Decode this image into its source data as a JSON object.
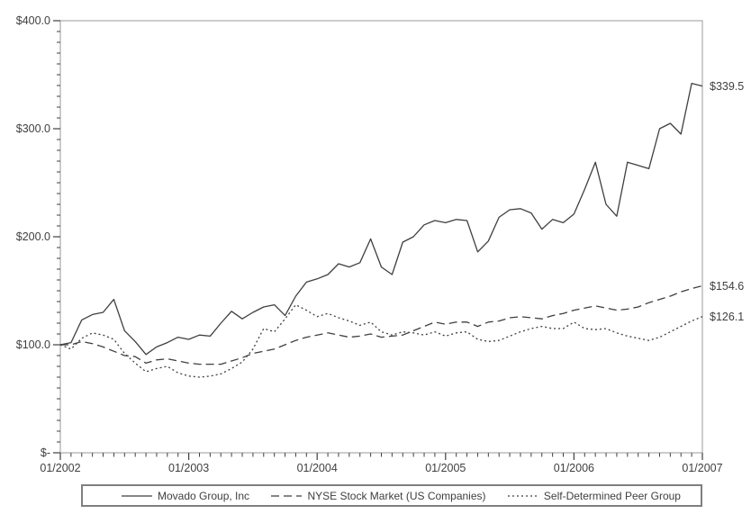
{
  "chart_data": {
    "type": "line",
    "title": "",
    "xlabel": "",
    "ylabel": "",
    "x_unit": "month",
    "x_range": [
      "01/2002",
      "01/2007"
    ],
    "x_tick_labels": [
      "01/2002",
      "01/2003",
      "01/2004",
      "01/2005",
      "01/2006",
      "01/2007"
    ],
    "x_minor_tick_every_months": 1,
    "x_major_tick_every_months": 12,
    "ylim": [
      0,
      400
    ],
    "y_minor_step": 10,
    "y_ticks": [
      {
        "value": 400,
        "label": "$400.0"
      },
      {
        "value": 300,
        "label": "$300.0"
      },
      {
        "value": 200,
        "label": "$200.0"
      },
      {
        "value": 100,
        "label": "$100.0"
      },
      {
        "value": 0,
        "label": "$-"
      }
    ],
    "grid": "off",
    "legend_position": "bottom",
    "colors": {
      "series_line": "#3f3f3f",
      "axis_line": "#9a9a9a",
      "text": "#3f3f3f",
      "legend_border": "#7f7f7f",
      "background": "#ffffff"
    },
    "series": [
      {
        "name": "Movado Group, Inc",
        "line_style": "solid",
        "end_label": "$339.5",
        "values": [
          100,
          102,
          123,
          128,
          130,
          142,
          113,
          103,
          91,
          98,
          102,
          107,
          105,
          109,
          108,
          120,
          131,
          124,
          130,
          135,
          137,
          127,
          145,
          158,
          161,
          165,
          175,
          172,
          176,
          198,
          172,
          165,
          195,
          200,
          211,
          215,
          213,
          216,
          215,
          186,
          196,
          218,
          225,
          226,
          222,
          207,
          216,
          213,
          221,
          244,
          269,
          230,
          219,
          269,
          266,
          263,
          300,
          305,
          295,
          342,
          339.5
        ]
      },
      {
        "name": "NYSE Stock Market (US Companies)",
        "line_style": "dashed",
        "end_label": "$154.6",
        "values": [
          100,
          100,
          103,
          101,
          98,
          94,
          90,
          89,
          83,
          86,
          87,
          85,
          83,
          82,
          82,
          82,
          85,
          88,
          92,
          94,
          96,
          100,
          104,
          107,
          109,
          111,
          109,
          107,
          108,
          110,
          107,
          108,
          109,
          113,
          117,
          121,
          119,
          121,
          121,
          117,
          121,
          122,
          125,
          126,
          125,
          124,
          127,
          129,
          132,
          134,
          136,
          134,
          132,
          133,
          135,
          139,
          142,
          145,
          149,
          152,
          154.6
        ]
      },
      {
        "name": "Self-Determined Peer Group",
        "line_style": "dotted",
        "end_label": "$126.1",
        "values": [
          100,
          96,
          106,
          111,
          109,
          105,
          92,
          83,
          75,
          78,
          80,
          74,
          71,
          70,
          71,
          73,
          78,
          84,
          96,
          115,
          112,
          124,
          137,
          132,
          126,
          129,
          125,
          122,
          118,
          121,
          112,
          109,
          112,
          111,
          109,
          112,
          108,
          111,
          112,
          105,
          103,
          104,
          108,
          112,
          115,
          117,
          115,
          115,
          121,
          115,
          114,
          115,
          111,
          108,
          106,
          104,
          107,
          112,
          117,
          122,
          126.1
        ]
      }
    ]
  }
}
